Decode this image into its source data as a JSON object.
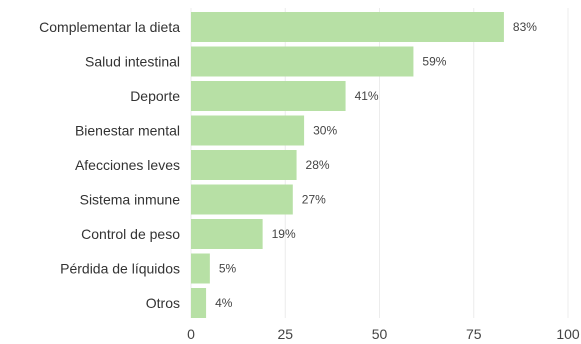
{
  "chart_data": {
    "type": "bar",
    "orientation": "horizontal",
    "categories": [
      "Complementar la dieta",
      "Salud intestinal",
      "Deporte",
      "Bienestar mental",
      "Afecciones leves",
      "Sistema inmune",
      "Control de peso",
      "Pérdida de líquidos",
      "Otros"
    ],
    "values": [
      83,
      59,
      41,
      30,
      28,
      27,
      19,
      5,
      4
    ],
    "value_labels": [
      "83%",
      "59%",
      "41%",
      "30%",
      "28%",
      "27%",
      "19%",
      "5%",
      "4%"
    ],
    "title": "",
    "xlabel": "",
    "ylabel": "",
    "xlim": [
      0,
      100
    ],
    "x_ticks": [
      0,
      25,
      50,
      75,
      100
    ],
    "x_tick_labels": [
      "0",
      "25",
      "50",
      "75",
      "100"
    ],
    "grid": true,
    "bar_color": "#b7e0a5"
  }
}
